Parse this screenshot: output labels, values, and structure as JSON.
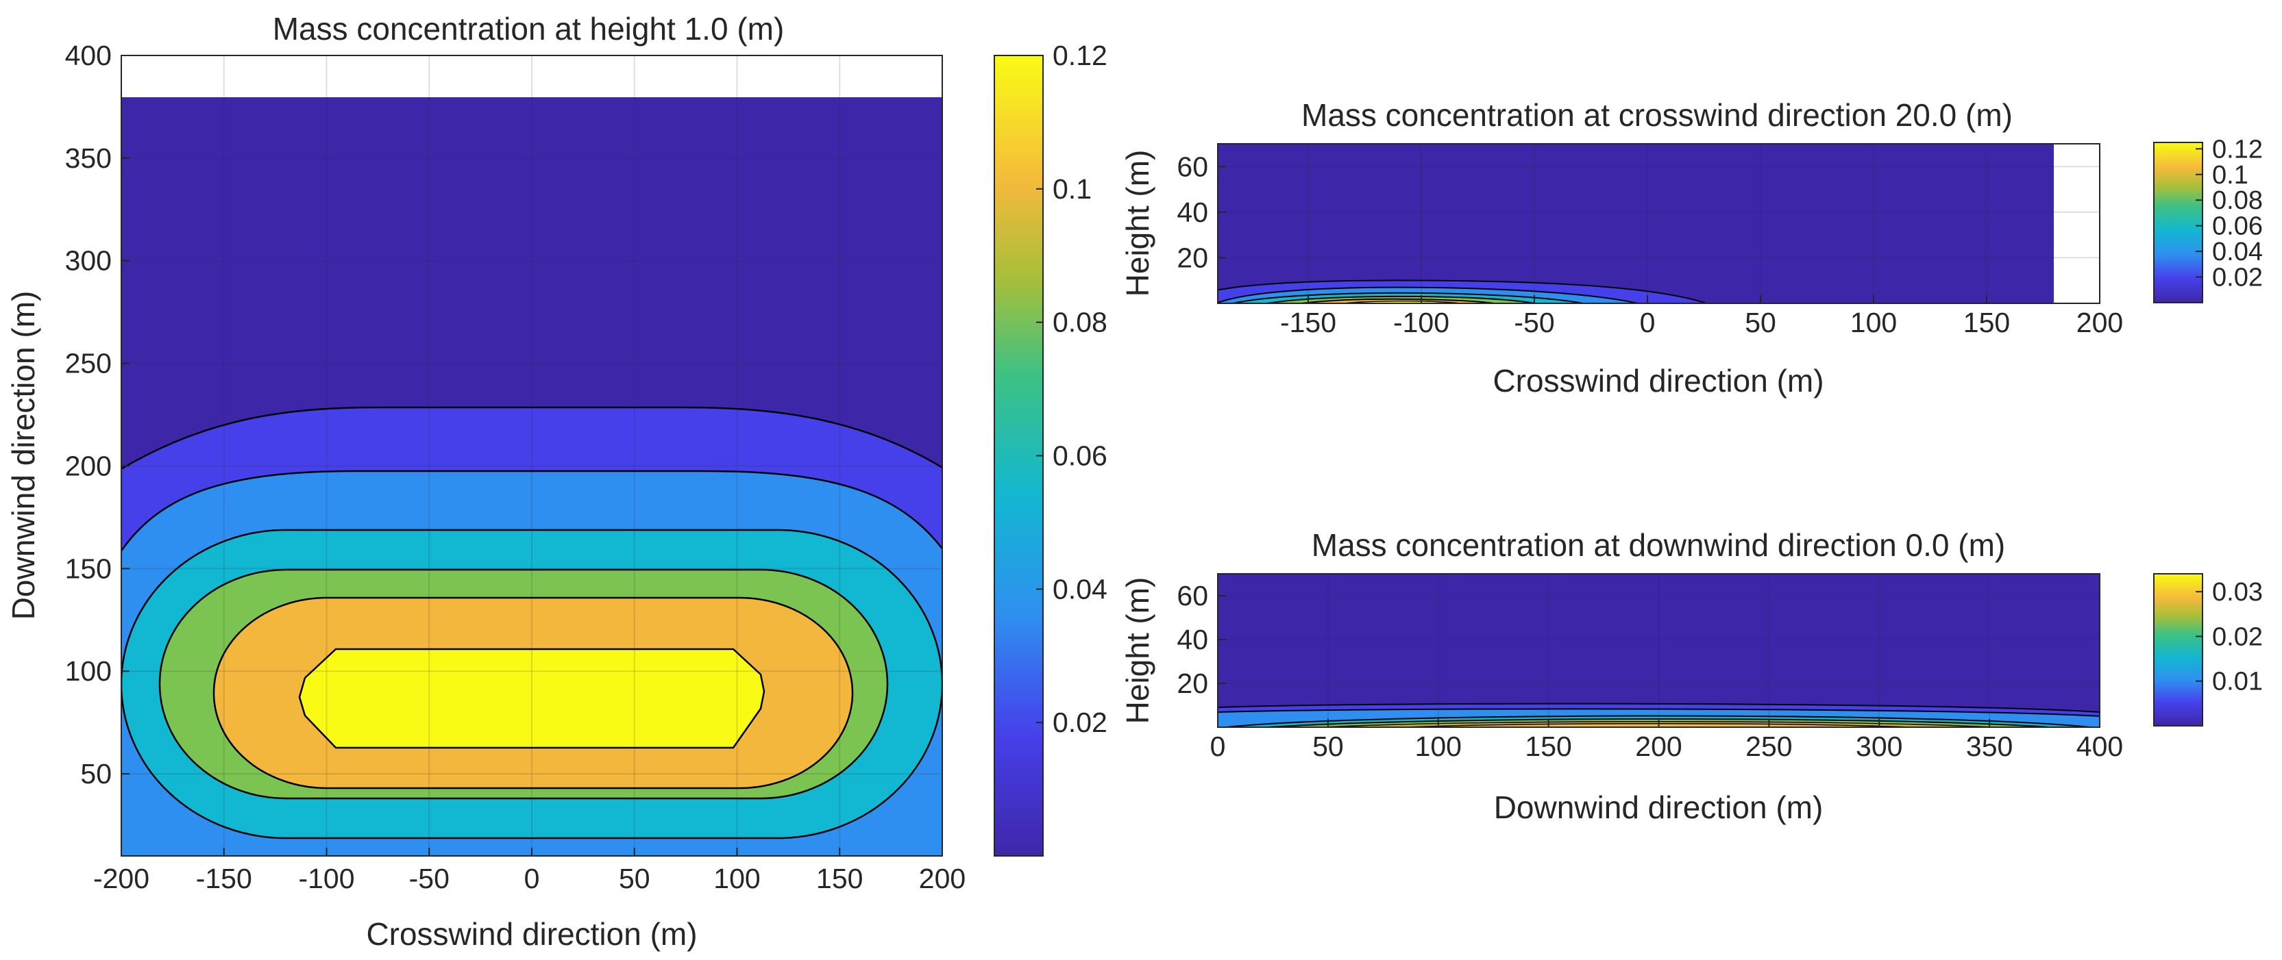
{
  "chart_data": [
    {
      "type": "contourf",
      "title": "Mass concentration at height 1.0 (m)",
      "xlabel": "Crosswind direction (m)",
      "ylabel": "Downwind direction (m)",
      "xlim": [
        -200,
        200
      ],
      "ylim": [
        10,
        400
      ],
      "data_extent_y": [
        10,
        380
      ],
      "xticks": [
        "-200",
        "-150",
        "-100",
        "-50",
        "0",
        "50",
        "100",
        "150",
        "200"
      ],
      "yticks": [
        "50",
        "100",
        "150",
        "200",
        "250",
        "300",
        "350",
        "400"
      ],
      "xtick_values": [
        -200,
        -150,
        -100,
        -50,
        0,
        50,
        100,
        150,
        200
      ],
      "ytick_values": [
        50,
        100,
        150,
        200,
        250,
        300,
        350,
        400
      ],
      "contour_levels": [
        0.0,
        0.012,
        0.024,
        0.047,
        0.07,
        0.094,
        0.118
      ],
      "colorbar": {
        "limits": [
          0,
          0.12
        ],
        "ticks": [
          "0.02",
          "0.04",
          "0.06",
          "0.08",
          "0.1",
          "0.12"
        ],
        "tick_values": [
          0.02,
          0.04,
          0.06,
          0.08,
          0.1,
          0.12
        ]
      },
      "plume_center": {
        "crosswind": 0,
        "downwind": 87
      },
      "grid": true
    },
    {
      "type": "contourf",
      "title": "Mass concentration at crosswind direction 20.0 (m)",
      "xlabel": "Crosswind direction (m)",
      "ylabel": "Height (m)",
      "xlim": [
        -190,
        200
      ],
      "ylim": [
        0,
        70
      ],
      "data_extent_x": [
        -190,
        180
      ],
      "xticks": [
        "-150",
        "-100",
        "-50",
        "0",
        "50",
        "100",
        "150",
        "200"
      ],
      "yticks": [
        "20",
        "40",
        "60"
      ],
      "xtick_values": [
        -150,
        -100,
        -50,
        0,
        50,
        100,
        150,
        200
      ],
      "ytick_values": [
        20,
        40,
        60
      ],
      "colorbar": {
        "limits": [
          0,
          0.125
        ],
        "ticks": [
          "0.02",
          "0.04",
          "0.06",
          "0.08",
          "0.1",
          "0.12"
        ],
        "tick_values": [
          0.02,
          0.04,
          0.06,
          0.08,
          0.1,
          0.12
        ]
      },
      "plume_peak": {
        "crosswind": -110,
        "height": 0
      },
      "grid": true
    },
    {
      "type": "contourf",
      "title": "Mass concentration at downwind direction 0.0 (m)",
      "xlabel": "Downwind direction (m)",
      "ylabel": "Height (m)",
      "xlim": [
        0,
        400
      ],
      "ylim": [
        0,
        70
      ],
      "xticks": [
        "0",
        "50",
        "100",
        "150",
        "200",
        "250",
        "300",
        "350",
        "400"
      ],
      "yticks": [
        "20",
        "40",
        "60"
      ],
      "xtick_values": [
        0,
        50,
        100,
        150,
        200,
        250,
        300,
        350,
        400
      ],
      "ytick_values": [
        20,
        40,
        60
      ],
      "colorbar": {
        "limits": [
          0,
          0.034
        ],
        "ticks": [
          "0.01",
          "0.02",
          "0.03"
        ],
        "tick_values": [
          0.01,
          0.02,
          0.03
        ]
      },
      "plume_peak": {
        "downwind": 200,
        "height": 0
      },
      "grid": true
    }
  ]
}
